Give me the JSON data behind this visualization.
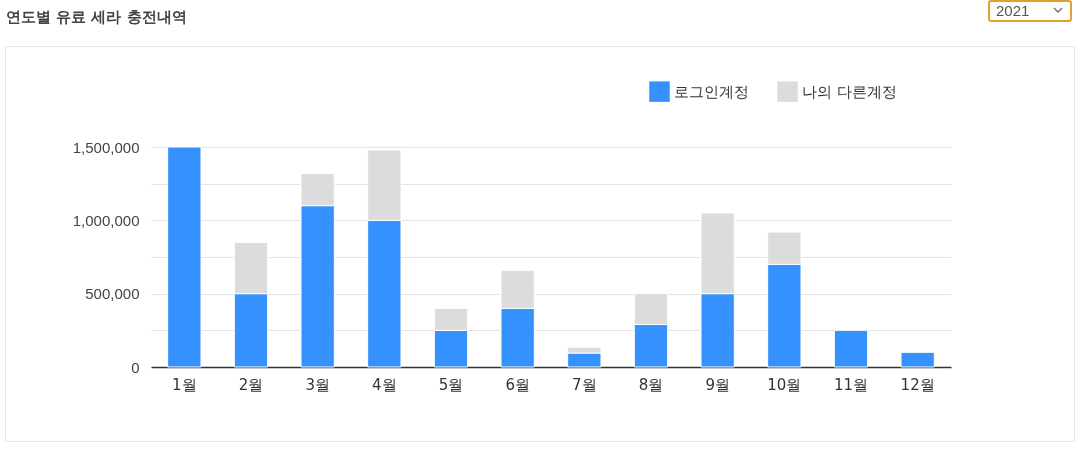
{
  "chart_data": {
    "type": "bar",
    "title": "연도별 유료 세라 충전내역",
    "annotations": [
      "2021"
    ],
    "categories": [
      "1월",
      "2월",
      "3월",
      "4월",
      "5월",
      "6월",
      "7월",
      "8월",
      "9월",
      "10월",
      "11월",
      "12월"
    ],
    "stacked": true,
    "series": [
      {
        "name": "로그인계정",
        "color": "#3591fd",
        "values": [
          1500000,
          500000,
          1100000,
          1000000,
          250000,
          400000,
          95000,
          290000,
          500000,
          700000,
          250000,
          100000
        ]
      },
      {
        "name": "나의 다른계정",
        "color": "#dcdcdc",
        "values": [
          null,
          350000,
          220000,
          480000,
          150000,
          260000,
          40000,
          210000,
          550000,
          220000,
          null,
          null
        ]
      }
    ],
    "ylim": [
      0,
      1500000
    ],
    "yticks": [
      0,
      {
        "value": 250000,
        "label": null
      },
      {
        "value": 500000,
        "label": "500,000"
      },
      {
        "value": 750000,
        "label": null
      },
      {
        "value": 1000000,
        "label": "1,000,000"
      },
      {
        "value": 1250000,
        "label": null
      },
      {
        "value": 1500000,
        "label": "1,500,000"
      }
    ],
    "grid": "y",
    "legend": "top right"
  }
}
